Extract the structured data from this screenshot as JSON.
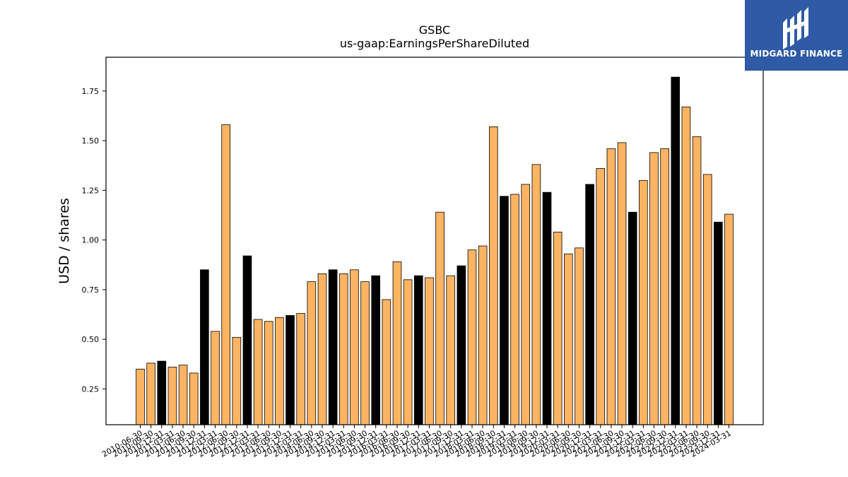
{
  "chart_data": {
    "type": "bar",
    "title": "GSBC",
    "subtitle": "us-gaap:EarningsPerShareDiluted",
    "xlabel": "",
    "ylabel": "USD / shares",
    "ylim": [
      0.07,
      1.92
    ],
    "yticks": [
      "0.25",
      "0.50",
      "0.75",
      "1.00",
      "1.25",
      "1.50",
      "1.75"
    ],
    "grid": false,
    "colors": {
      "quarter": "#fdb462",
      "fiscal_year": "#000000",
      "edge": "#000000"
    },
    "categories": [
      "2010-06-30",
      "2010-09-30",
      "2010-12-31",
      "2011-03-31",
      "2011-06-30",
      "2011-09-30",
      "2011-12-31",
      "2012-03-31",
      "2012-06-30",
      "2012-09-30",
      "2012-12-31",
      "2013-03-31",
      "2013-06-30",
      "2013-09-30",
      "2013-12-31",
      "2014-03-31",
      "2014-06-30",
      "2014-09-30",
      "2014-12-31",
      "2015-03-31",
      "2015-06-30",
      "2015-09-30",
      "2015-12-31",
      "2016-03-31",
      "2016-06-30",
      "2016-09-30",
      "2016-12-31",
      "2017-03-31",
      "2017-06-30",
      "2017-09-30",
      "2017-12-31",
      "2018-03-31",
      "2018-06-30",
      "2018-09-30",
      "2018-12-31",
      "2019-03-31",
      "2019-06-30",
      "2019-09-30",
      "2019-12-31",
      "2020-03-31",
      "2020-06-30",
      "2020-09-30",
      "2020-12-31",
      "2021-03-31",
      "2021-06-30",
      "2021-09-30",
      "2021-12-31",
      "2022-03-31",
      "2022-06-30",
      "2022-09-30",
      "2022-12-31",
      "2023-03-31",
      "2023-06-30",
      "2023-09-30",
      "2023-12-31",
      "2024-03-31"
    ],
    "values": [
      0.35,
      0.38,
      0.39,
      0.36,
      0.37,
      0.33,
      0.85,
      0.54,
      1.58,
      0.51,
      0.92,
      0.6,
      0.59,
      0.61,
      0.62,
      0.63,
      0.79,
      0.83,
      0.85,
      0.83,
      0.85,
      0.79,
      0.82,
      0.7,
      0.89,
      0.8,
      0.82,
      0.81,
      1.14,
      0.82,
      0.87,
      0.95,
      0.97,
      1.57,
      1.22,
      1.23,
      1.28,
      1.38,
      1.24,
      1.04,
      0.93,
      0.96,
      1.28,
      1.36,
      1.46,
      1.49,
      1.14,
      1.3,
      1.44,
      1.46,
      1.82,
      1.67,
      1.52,
      1.33,
      1.09,
      1.13
    ],
    "fiscal_year_flags": [
      0,
      0,
      1,
      0,
      0,
      0,
      1,
      0,
      0,
      0,
      1,
      0,
      0,
      0,
      1,
      0,
      0,
      0,
      1,
      0,
      0,
      0,
      1,
      0,
      0,
      0,
      1,
      0,
      0,
      0,
      1,
      0,
      0,
      0,
      1,
      0,
      0,
      0,
      1,
      0,
      0,
      0,
      1,
      0,
      0,
      0,
      1,
      0,
      0,
      0,
      1,
      0,
      0,
      0,
      1,
      0
    ]
  },
  "logo": {
    "text": "MIDGARD FINANCE",
    "icon": "midgard-logo-icon"
  }
}
